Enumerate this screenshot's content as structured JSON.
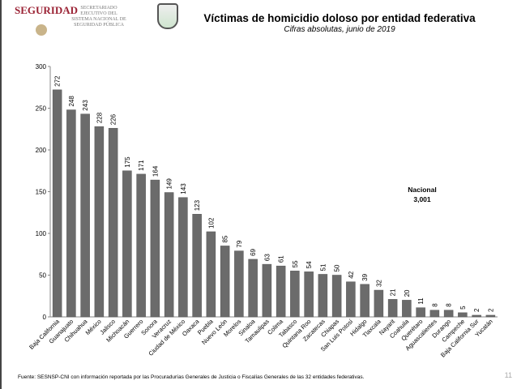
{
  "header": {
    "logo_text": "SEGURIDAD",
    "agency": "SECRETARIADO EJECUTIVO DEL SISTEMA NACIONAL DE SEGURIDAD PÚBLICA",
    "title": "Víctimas de homicidio doloso por entidad federativa",
    "subtitle": "Cifras absolutas, junio de 2019"
  },
  "annotation": {
    "label": "Nacional",
    "value": "3,001"
  },
  "footer": {
    "source": "Fuente: SESNSP-CNI con información reportada por las Procuradurías Generales de Justicia o Fiscalías Generales de las 32 entidades federativas.",
    "page": "11"
  },
  "chart_data": {
    "type": "bar",
    "title": "Víctimas de homicidio doloso por entidad federativa",
    "subtitle": "Cifras absolutas, junio de 2019",
    "categories": [
      "Baja California",
      "Guanajuato",
      "Chihuahua",
      "México",
      "Jalisco",
      "Michoacán",
      "Guerrero",
      "Sonora",
      "Veracruz",
      "Ciudad de México",
      "Oaxaca",
      "Puebla",
      "Nuevo León",
      "Morelos",
      "Sinaloa",
      "Tamaulipas",
      "Colima",
      "Tabasco",
      "Quintana Roo",
      "Zacatecas",
      "Chiapas",
      "San Luis Potosí",
      "Hidalgo",
      "Tlaxcala",
      "Nayarit",
      "Coahuila",
      "Querétaro",
      "Aguascalientes",
      "Durango",
      "Campeche",
      "Baja California Sur",
      "Yucatán"
    ],
    "values": [
      272,
      248,
      243,
      228,
      226,
      175,
      171,
      164,
      149,
      143,
      123,
      102,
      85,
      79,
      69,
      63,
      61,
      55,
      54,
      51,
      50,
      42,
      39,
      32,
      21,
      20,
      11,
      8,
      8,
      5,
      2,
      2
    ],
    "ylim": [
      0,
      300
    ],
    "yticks": [
      0,
      50,
      100,
      150,
      200,
      250,
      300
    ],
    "grid": false,
    "bar_color": "#6b6b6b"
  }
}
